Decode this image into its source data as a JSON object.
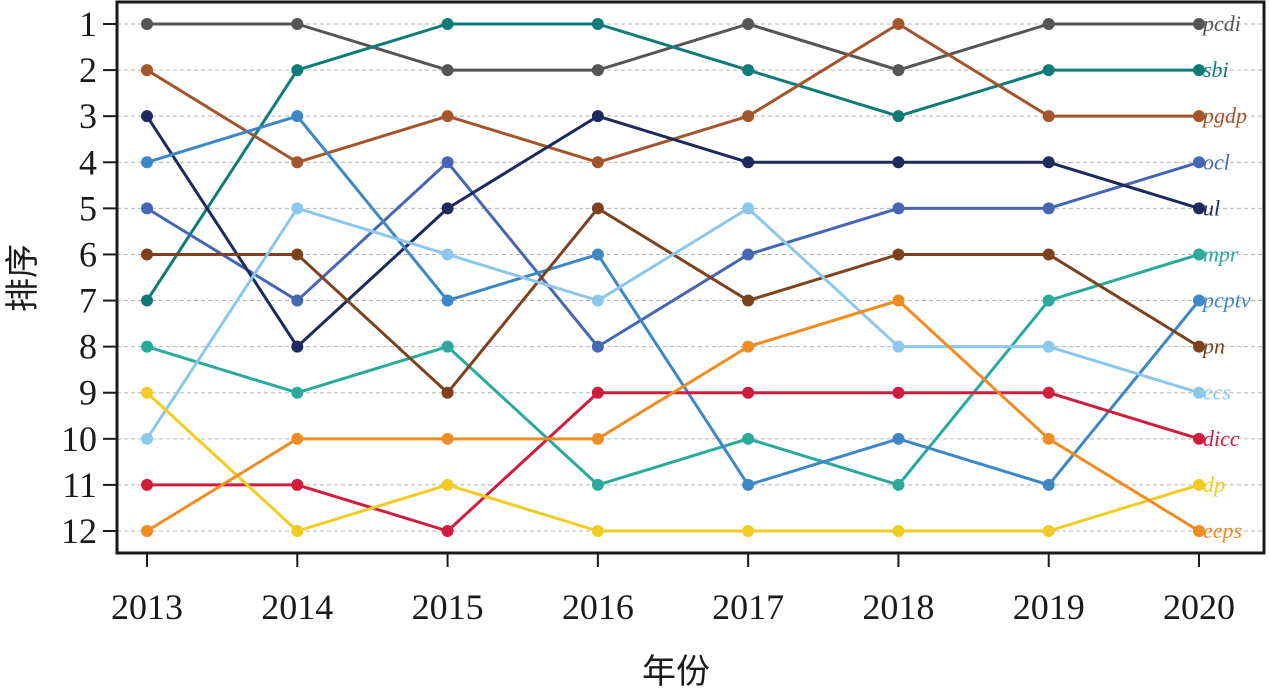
{
  "chart_data": {
    "type": "line",
    "title": "",
    "xlabel": "年份",
    "ylabel": "排序",
    "x": [
      "2013",
      "2014",
      "2015",
      "2016",
      "2017",
      "2018",
      "2019",
      "2020"
    ],
    "y_ticks": [
      "1",
      "2",
      "3",
      "4",
      "5",
      "6",
      "7",
      "8",
      "9",
      "10",
      "11",
      "12"
    ],
    "ylim": [
      1,
      12
    ],
    "y_inverted": true,
    "grid": "horizontal-dashed",
    "legend": "inline-right",
    "series": [
      {
        "name": "pcdi",
        "color": "#555555",
        "values": [
          1,
          1,
          2,
          2,
          1,
          2,
          1,
          1
        ]
      },
      {
        "name": "sbi",
        "color": "#0f7b78",
        "values": [
          7,
          2,
          1,
          1,
          2,
          3,
          2,
          2
        ]
      },
      {
        "name": "pgdp",
        "color": "#a3552c",
        "values": [
          2,
          4,
          3,
          4,
          3,
          1,
          3,
          3
        ]
      },
      {
        "name": "ocl",
        "color": "#4567b3",
        "values": [
          5,
          7,
          4,
          8,
          6,
          5,
          5,
          4
        ]
      },
      {
        "name": "ul",
        "color": "#1c2a5c",
        "values": [
          3,
          8,
          5,
          3,
          4,
          4,
          4,
          5
        ]
      },
      {
        "name": "mpr",
        "color": "#2aa99c",
        "values": [
          8,
          9,
          8,
          11,
          10,
          11,
          7,
          6
        ]
      },
      {
        "name": "pcptv",
        "color": "#3d86c8",
        "values": [
          4,
          3,
          7,
          6,
          11,
          10,
          11,
          7
        ]
      },
      {
        "name": "pn",
        "color": "#7d421d",
        "values": [
          6,
          6,
          9,
          5,
          7,
          6,
          6,
          8
        ]
      },
      {
        "name": "ecs",
        "color": "#8cc8ed",
        "values": [
          10,
          5,
          6,
          7,
          5,
          8,
          8,
          9
        ]
      },
      {
        "name": "dicc",
        "color": "#d11d3d",
        "values": [
          11,
          11,
          12,
          9,
          9,
          9,
          9,
          10
        ]
      },
      {
        "name": "dp",
        "color": "#f3cc21",
        "values": [
          9,
          12,
          11,
          12,
          12,
          12,
          12,
          11
        ]
      },
      {
        "name": "eeps",
        "color": "#ef8c22",
        "values": [
          12,
          10,
          10,
          10,
          8,
          7,
          10,
          12
        ]
      }
    ]
  }
}
